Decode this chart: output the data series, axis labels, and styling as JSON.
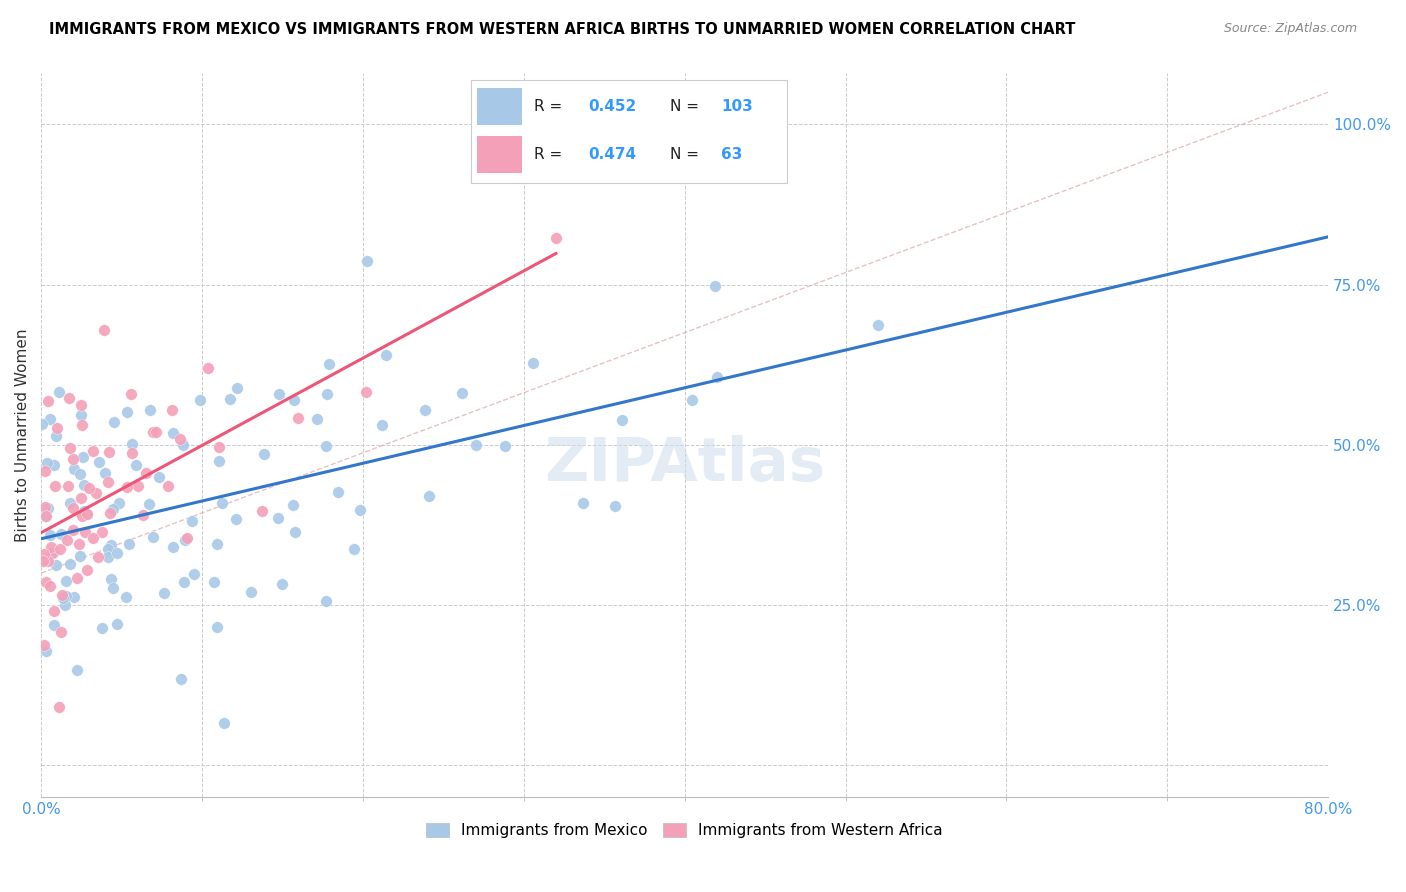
{
  "title": "IMMIGRANTS FROM MEXICO VS IMMIGRANTS FROM WESTERN AFRICA BIRTHS TO UNMARRIED WOMEN CORRELATION CHART",
  "source": "Source: ZipAtlas.com",
  "ylabel": "Births to Unmarried Women",
  "blue_color": "#a8c8e8",
  "pink_color": "#f4a0b8",
  "blue_line_color": "#3377cc",
  "pink_line_color": "#ee5577",
  "legend_blue_R": "0.452",
  "legend_blue_N": "103",
  "legend_pink_R": "0.474",
  "legend_pink_N": "63",
  "xlim": [
    0.0,
    0.8
  ],
  "ylim": [
    -0.05,
    1.08
  ],
  "blue_seed": 42,
  "pink_seed": 15,
  "n_blue": 103,
  "n_pink": 63
}
